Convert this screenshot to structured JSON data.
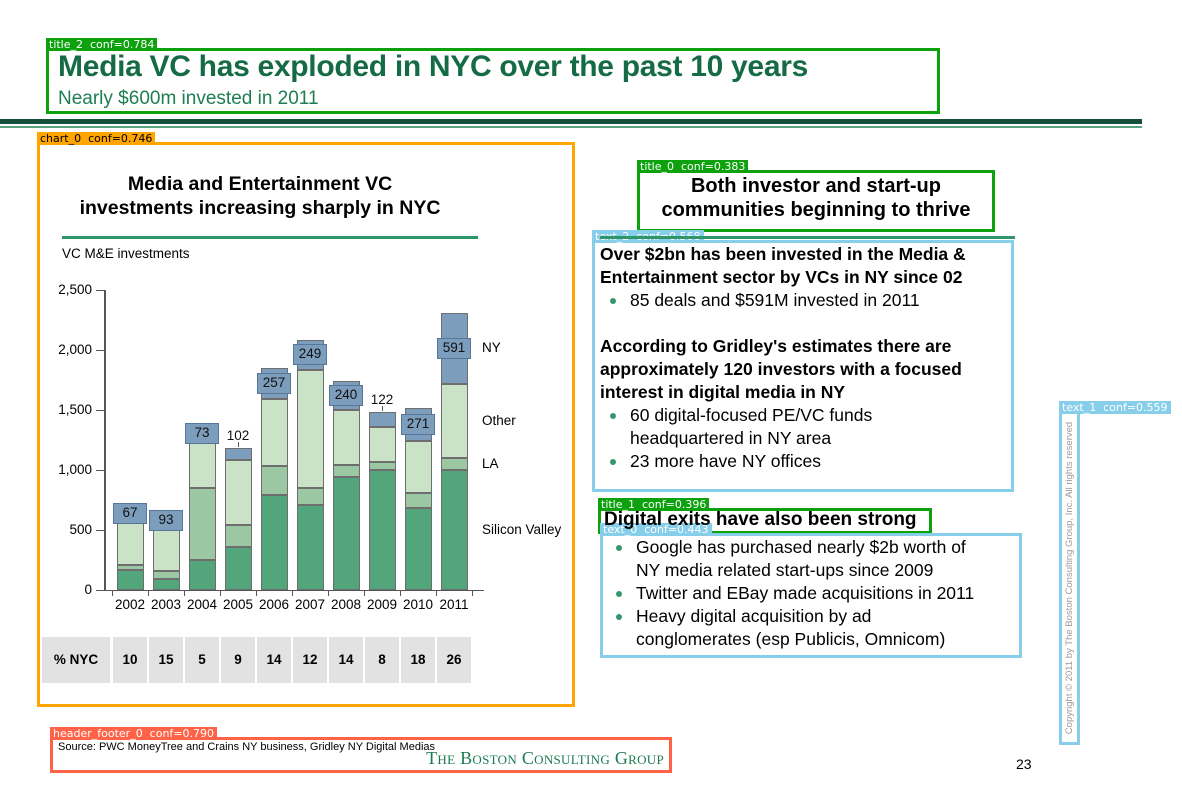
{
  "header": {
    "title": "Media VC has exploded in NYC over the past 10 years",
    "subtitle": "Nearly $600m invested in 2011"
  },
  "annotations": {
    "title_2": "title_2  conf=0.784",
    "chart_0": "chart_0  conf=0.746",
    "title_0": "title_0  conf=0.383",
    "text_2": "text_2  conf=0.568",
    "title_1": "title_1  conf=0.396",
    "text_0": "text_0  conf=0.443",
    "text_1": "text_1  conf=0.559",
    "header_footer_0": "header_footer_0  conf=0.790"
  },
  "chart_data": {
    "type": "stacked_bar",
    "title": "Media and Entertainment VC investments increasing sharply in NYC",
    "title_lines": [
      "Media and Entertainment VC",
      "investments increasing sharply in NYC"
    ],
    "axis_caption": "VC M&E investments",
    "categories": [
      "2002",
      "2003",
      "2004",
      "2005",
      "2006",
      "2007",
      "2008",
      "2009",
      "2010",
      "2011"
    ],
    "series": [
      {
        "name": "Silicon Valley",
        "color": "#53a57c",
        "values": [
          170,
          90,
          250,
          360,
          790,
          710,
          940,
          1000,
          680,
          1000
        ]
      },
      {
        "name": "LA",
        "color": "#9cc7a3",
        "values": [
          40,
          70,
          600,
          185,
          240,
          140,
          100,
          70,
          125,
          100
        ]
      },
      {
        "name": "Other",
        "color": "#cae2c5",
        "values": [
          390,
          370,
          420,
          540,
          560,
          985,
          460,
          290,
          440,
          620
        ]
      },
      {
        "name": "NY",
        "color": "#7c9dbb",
        "values": [
          67,
          93,
          73,
          102,
          257,
          249,
          240,
          122,
          271,
          591
        ]
      }
    ],
    "value_labels": [
      67,
      93,
      73,
      102,
      257,
      249,
      240,
      122,
      271,
      591
    ],
    "value_label_styles": [
      "box",
      "box",
      "box",
      "above",
      "box",
      "box",
      "box",
      "above",
      "box",
      "box"
    ],
    "ylim": [
      0,
      2500
    ],
    "yticks": [
      "0",
      "500",
      "1,000",
      "1,500",
      "2,000",
      "2,500"
    ],
    "legend": [
      "NY",
      "Other",
      "LA",
      "Silicon Valley"
    ],
    "legend_position": "right-of-last-bar",
    "grid": false,
    "table": {
      "header": "% NYC",
      "values": [
        10,
        15,
        5,
        9,
        14,
        12,
        14,
        8,
        18,
        26
      ]
    }
  },
  "right_column": {
    "heading_lines": [
      "Both investor and start-up",
      "communities beginning to thrive"
    ],
    "investor_text": {
      "blocks": [
        {
          "style": "bold",
          "text": "Over $2bn has been invested in the Media &"
        },
        {
          "style": "bold",
          "text": "Entertainment sector by VCs in NY since 02"
        },
        {
          "style": "bullet",
          "text": "85 deals and $591M invested in 2011"
        },
        {
          "style": "gap",
          "text": ""
        },
        {
          "style": "bold",
          "text": "According to Gridley's estimates there are"
        },
        {
          "style": "bold",
          "text": "approximately 120 investors with a focused"
        },
        {
          "style": "bold",
          "text": "interest in digital media in NY"
        },
        {
          "style": "bullet",
          "text": "60 digital-focused PE/VC funds"
        },
        {
          "style": "cont",
          "text": "headquartered in NY area"
        },
        {
          "style": "bullet",
          "text": "23 more have NY offices"
        }
      ]
    },
    "exits_heading": "Digital exits have also been strong",
    "exits_text": {
      "blocks": [
        {
          "style": "bullet",
          "text": "Google has purchased nearly $2b worth of"
        },
        {
          "style": "cont",
          "text": "NY media related start-ups since 2009"
        },
        {
          "style": "bullet",
          "text": "Twitter and EBay made acquisitions in 2011"
        },
        {
          "style": "bullet",
          "text": "Heavy digital acquisition by ad"
        },
        {
          "style": "cont",
          "text": "conglomerates (esp Publicis, Omnicom)"
        }
      ]
    }
  },
  "copyright_vertical": "Copyright © 2011 by The Boston Consulting Group, Inc. All rights reserved",
  "footer": {
    "source": "Source: PWC MoneyTree and Crains NY business, Gridley NY Digital Medias",
    "logo": "The Boston Consulting Group"
  },
  "page": {
    "number": "23"
  },
  "colors": {
    "title_green": "#156b45",
    "annotation_green": "#0ea10e",
    "annotation_orange": "#ffa500",
    "annotation_skyblue": "#87ceeb",
    "annotation_tomato": "#ff6347"
  }
}
